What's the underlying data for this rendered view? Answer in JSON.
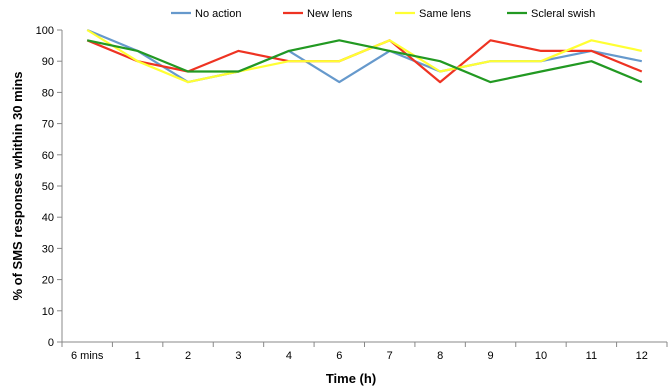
{
  "chart_data": {
    "type": "line",
    "title": "",
    "xlabel": "Time (h)",
    "ylabel": "% of SMS responses whithin 30 mins",
    "categories": [
      "6 mins",
      "1",
      "2",
      "3",
      "4",
      "6",
      "7",
      "8",
      "9",
      "10",
      "11",
      "12"
    ],
    "ylim": [
      0,
      100
    ],
    "yticks": [
      "0",
      "10",
      "20",
      "30",
      "40",
      "50",
      "60",
      "70",
      "80",
      "90",
      "100"
    ],
    "grid": false,
    "legend_position": "top",
    "series": [
      {
        "name": "No action",
        "color": "#6699cc",
        "values": [
          100,
          93.3,
          83.3,
          86.7,
          93.3,
          83.3,
          93.3,
          86.7,
          90,
          90,
          93.3,
          90
        ]
      },
      {
        "name": "New lens",
        "color": "#ee3322",
        "values": [
          96.7,
          90,
          86.7,
          93.3,
          90,
          90,
          96.7,
          83.3,
          96.7,
          93.3,
          93.3,
          86.7
        ]
      },
      {
        "name": "Same lens",
        "color": "#ffff33",
        "values": [
          100,
          90,
          83.3,
          86.7,
          90,
          90,
          96.7,
          86.7,
          90,
          90,
          96.7,
          93.3
        ]
      },
      {
        "name": "Scleral swish",
        "color": "#229922",
        "values": [
          96.7,
          93.3,
          86.7,
          86.7,
          93.3,
          96.7,
          93.3,
          90,
          83.3,
          86.7,
          90,
          83.3
        ]
      }
    ]
  }
}
